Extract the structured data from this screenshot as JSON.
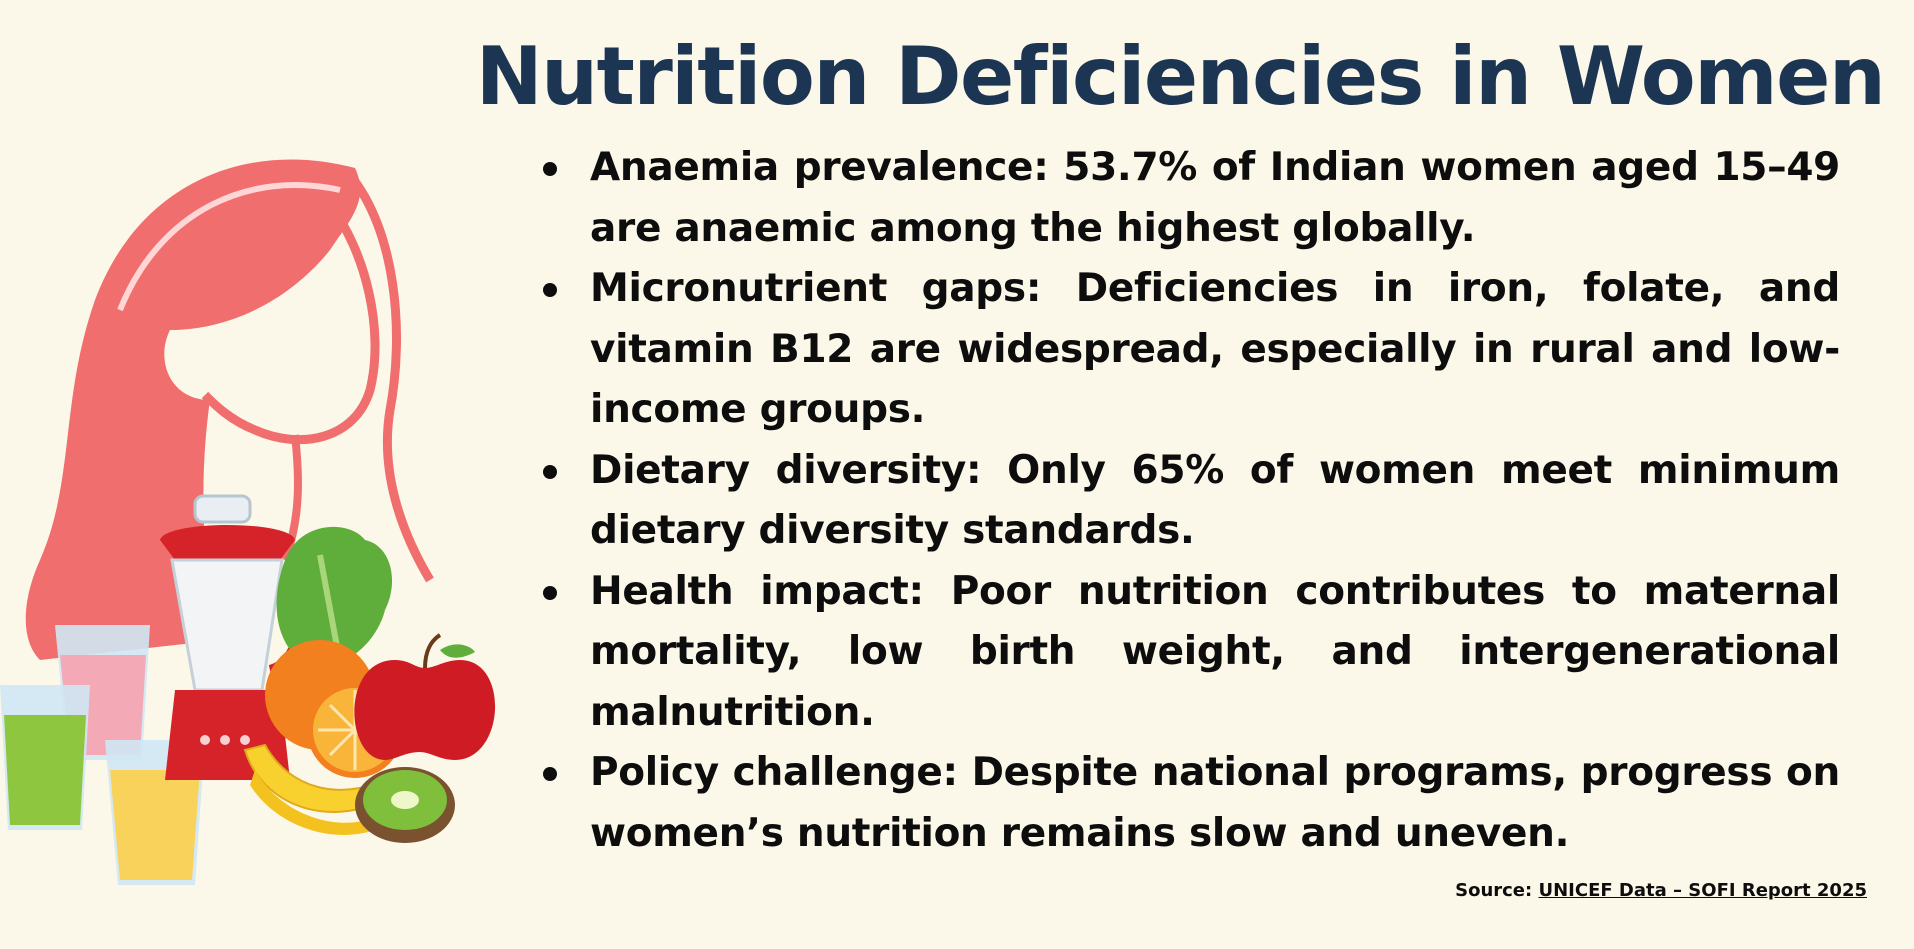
{
  "title": "Nutrition Deficiencies in Women",
  "bullets": [
    {
      "text": "Anaemia prevalence: 53.7% of Indian women aged 15–49 are anaemic among the highest globally."
    },
    {
      "text": "Micronutrient gaps: Deficiencies in iron, folate, and vitamin B12 are widespread, especially in rural and low-income groups."
    },
    {
      "text": "Dietary diversity: Only 65% of women meet minimum dietary diversity standards."
    },
    {
      "text": "Health impact: Poor nutrition contributes to maternal mortality, low birth weight, and intergenerational malnutrition."
    },
    {
      "text": "Policy challenge: Despite national programs, progress on women’s nutrition remains slow and uneven."
    }
  ],
  "source": {
    "label": "Source: ",
    "link_text": "UNICEF Data – SOFI Report 2025"
  },
  "colors": {
    "background": "#fcf8e9",
    "title": "#1c3553",
    "hair": "#f16e6e",
    "text": "#0d0d0d"
  }
}
